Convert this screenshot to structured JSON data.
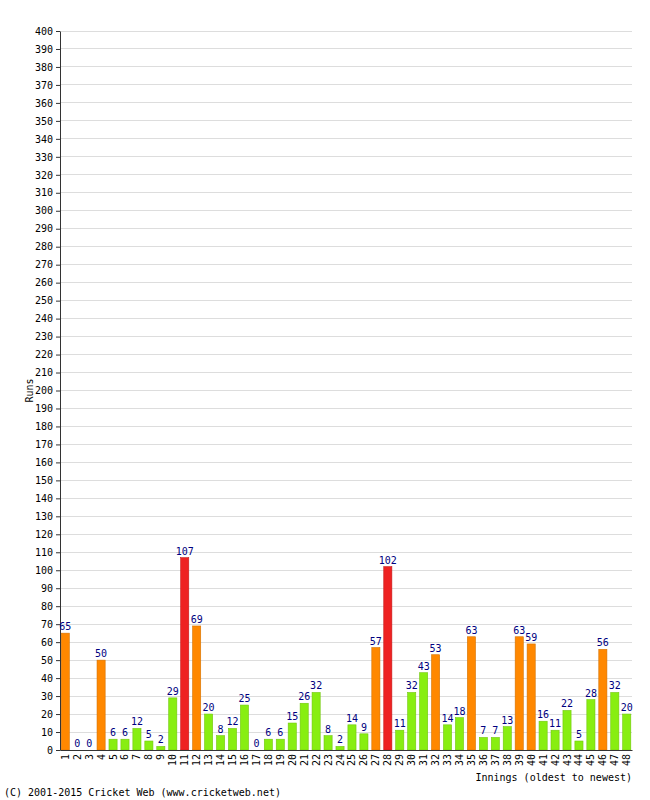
{
  "chart_data": {
    "type": "bar",
    "y_label": "Runs",
    "x_label": "Innings (oldest to newest)",
    "annotations": [
      "(C) 2001-2015 Cricket Web (www.cricketweb.net)"
    ],
    "categories": [
      "1",
      "2",
      "3",
      "4",
      "5",
      "6",
      "7",
      "8",
      "9",
      "10",
      "11",
      "12",
      "13",
      "14",
      "15",
      "16",
      "17",
      "18",
      "19",
      "20",
      "21",
      "22",
      "23",
      "24",
      "25",
      "26",
      "27",
      "28",
      "29",
      "30",
      "31",
      "32",
      "33",
      "34",
      "35",
      "36",
      "37",
      "38",
      "39",
      "40",
      "41",
      "42",
      "43",
      "44",
      "45",
      "46",
      "47",
      "48"
    ],
    "values": [
      65,
      0,
      0,
      50,
      6,
      6,
      12,
      5,
      2,
      29,
      107,
      69,
      20,
      8,
      12,
      25,
      0,
      6,
      6,
      15,
      26,
      32,
      8,
      2,
      14,
      9,
      57,
      102,
      11,
      32,
      43,
      53,
      14,
      18,
      63,
      7,
      7,
      13,
      63,
      59,
      16,
      11,
      22,
      5,
      28,
      56,
      32,
      20
    ],
    "colors": [
      "#ff8800",
      "#88ee11",
      "#88ee11",
      "#ff8800",
      "#88ee11",
      "#88ee11",
      "#88ee11",
      "#88ee11",
      "#88ee11",
      "#88ee11",
      "#ee2222",
      "#ff8800",
      "#88ee11",
      "#88ee11",
      "#88ee11",
      "#88ee11",
      "#88ee11",
      "#88ee11",
      "#88ee11",
      "#88ee11",
      "#88ee11",
      "#88ee11",
      "#88ee11",
      "#88ee11",
      "#88ee11",
      "#88ee11",
      "#ff8800",
      "#ee2222",
      "#88ee11",
      "#88ee11",
      "#88ee11",
      "#ff8800",
      "#88ee11",
      "#88ee11",
      "#ff8800",
      "#88ee11",
      "#88ee11",
      "#88ee11",
      "#ff8800",
      "#ff8800",
      "#88ee11",
      "#88ee11",
      "#88ee11",
      "#88ee11",
      "#88ee11",
      "#ff8800",
      "#88ee11",
      "#88ee11"
    ],
    "ylim": [
      0,
      400
    ],
    "yticks": [
      0,
      10,
      20,
      30,
      40,
      50,
      60,
      70,
      80,
      90,
      100,
      110,
      120,
      130,
      140,
      150,
      160,
      170,
      180,
      190,
      200,
      210,
      220,
      230,
      240,
      250,
      260,
      270,
      280,
      290,
      300,
      310,
      320,
      330,
      340,
      350,
      360,
      370,
      380,
      390,
      400
    ],
    "grid": true,
    "data_labels": true
  }
}
